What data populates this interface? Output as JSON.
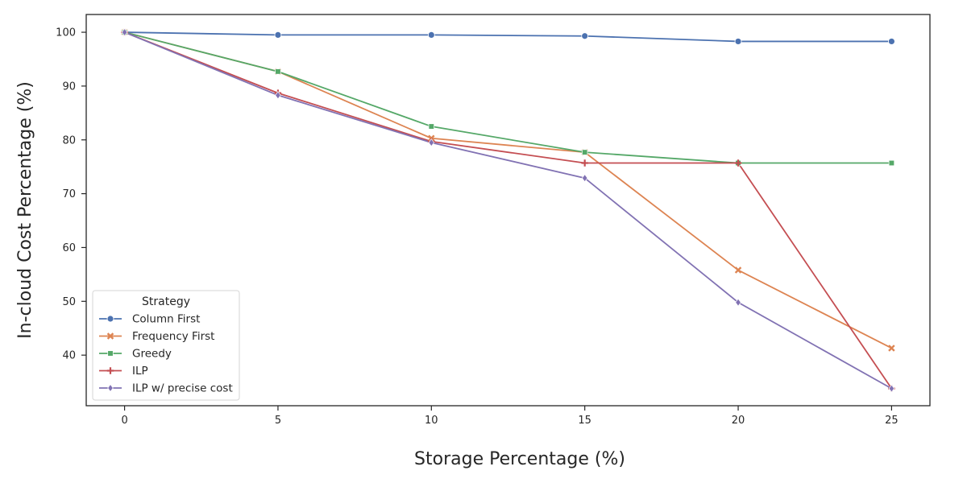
{
  "chart_data": {
    "type": "line",
    "xlabel": "Storage Percentage (%)",
    "ylabel": "In-cloud Cost Percentage (%)",
    "x": [
      0,
      5,
      10,
      15,
      20,
      25
    ],
    "xticks": [
      "0",
      "5",
      "10",
      "15",
      "20",
      "25"
    ],
    "yticks": [
      "40",
      "50",
      "60",
      "70",
      "80",
      "90",
      "100"
    ],
    "xlim": [
      -1.25,
      26.25
    ],
    "ylim": [
      30.6,
      103.3
    ],
    "grid": false,
    "legend": {
      "title": "Strategy",
      "placement": "lower-left"
    },
    "series": [
      {
        "name": "Column First",
        "color": "#4c72b0",
        "marker": "circle",
        "values": [
          100,
          99.5,
          99.5,
          99.3,
          98.3,
          98.3
        ]
      },
      {
        "name": "Frequency First",
        "color": "#dd8452",
        "marker": "x",
        "values": [
          100,
          92.7,
          80.3,
          77.7,
          55.8,
          41.3
        ]
      },
      {
        "name": "Greedy",
        "color": "#55a868",
        "marker": "square",
        "values": [
          100,
          92.7,
          82.5,
          77.7,
          75.7,
          75.7
        ]
      },
      {
        "name": "ILP",
        "color": "#c44e52",
        "marker": "plus",
        "values": [
          100,
          88.7,
          79.7,
          75.7,
          75.7,
          33.8
        ]
      },
      {
        "name": "ILP w/ precise cost",
        "color": "#8172b3",
        "marker": "diamond",
        "values": [
          100,
          88.3,
          79.5,
          72.9,
          49.8,
          33.8
        ]
      }
    ]
  }
}
